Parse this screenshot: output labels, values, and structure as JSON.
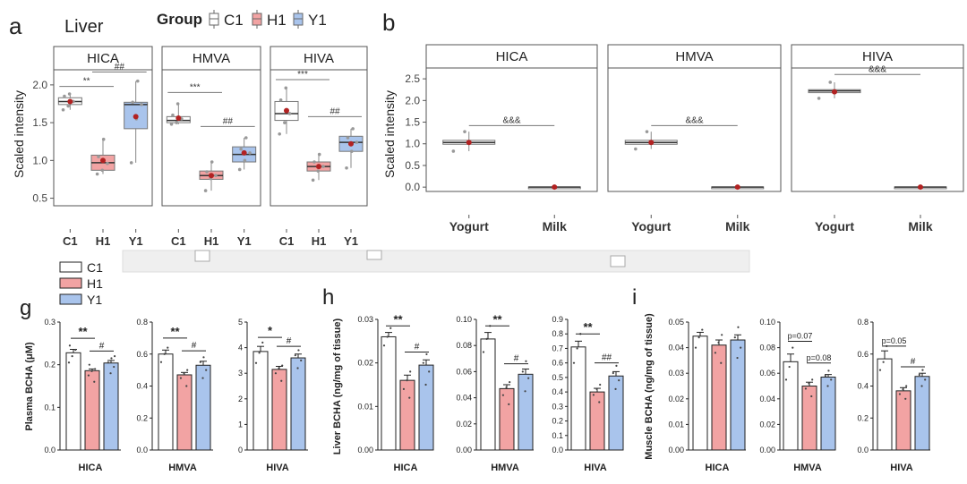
{
  "panel_labels": {
    "a": "a",
    "b": "b",
    "g": "g",
    "h": "h",
    "i": "i"
  },
  "colors": {
    "C1": "#ffffff",
    "H1": "#f2a3a3",
    "Y1": "#a9c4ec",
    "mean": "#b22222",
    "dots": "#999999"
  },
  "legend_top": {
    "title": "Liver",
    "group_label": "Group",
    "items": [
      "C1",
      "H1",
      "Y1"
    ]
  },
  "legend_bottom": {
    "items": [
      "C1",
      "H1",
      "Y1"
    ]
  },
  "chart_data": [
    {
      "id": "a",
      "type": "box",
      "tissue": "Liver",
      "ylabel": "Scaled intensity",
      "ylim": [
        0.4,
        2.2
      ],
      "yticks": [
        "0.5",
        "1.0",
        "1.5",
        "2.0"
      ],
      "ytick_values": [
        0.5,
        1.0,
        1.5,
        2.0
      ],
      "categories": [
        "C1",
        "H1",
        "Y1"
      ],
      "facets": [
        {
          "title": "HICA",
          "boxes": [
            {
              "q1": 1.74,
              "median": 1.78,
              "q3": 1.83,
              "low": 1.67,
              "high": 1.88,
              "mean": 1.78,
              "pts": [
                1.67,
                1.72,
                1.78,
                1.85,
                1.88
              ]
            },
            {
              "q1": 0.87,
              "median": 0.97,
              "q3": 1.07,
              "low": 0.82,
              "high": 1.28,
              "mean": 1.0,
              "pts": [
                0.82,
                0.87,
                0.96,
                1.05,
                1.28
              ]
            },
            {
              "q1": 1.42,
              "median": 1.74,
              "q3": 1.77,
              "low": 0.97,
              "high": 2.05,
              "mean": 1.58,
              "pts": [
                0.97,
                1.55,
                1.74,
                1.77,
                2.05
              ]
            }
          ],
          "annotations": [
            {
              "from": 0,
              "to": 1,
              "y": 1.98,
              "text": "**"
            },
            {
              "from": 1,
              "to": 2,
              "y": 2.17,
              "text": "##"
            }
          ]
        },
        {
          "title": "HMVA",
          "boxes": [
            {
              "q1": 1.5,
              "median": 1.53,
              "q3": 1.58,
              "low": 1.48,
              "high": 1.75,
              "mean": 1.56,
              "pts": [
                1.48,
                1.5,
                1.55,
                1.6,
                1.75
              ]
            },
            {
              "q1": 0.75,
              "median": 0.8,
              "q3": 0.86,
              "low": 0.6,
              "high": 0.98,
              "mean": 0.8,
              "pts": [
                0.6,
                0.76,
                0.8,
                0.85,
                0.98
              ]
            },
            {
              "q1": 0.98,
              "median": 1.08,
              "q3": 1.18,
              "low": 0.88,
              "high": 1.3,
              "mean": 1.1,
              "pts": [
                0.88,
                1.0,
                1.1,
                1.15,
                1.3
              ]
            }
          ],
          "annotations": [
            {
              "from": 0,
              "to": 1,
              "y": 1.9,
              "text": "***"
            },
            {
              "from": 1,
              "to": 2,
              "y": 1.45,
              "text": "##"
            }
          ]
        },
        {
          "title": "HIVA",
          "boxes": [
            {
              "q1": 1.53,
              "median": 1.62,
              "q3": 1.78,
              "low": 1.35,
              "high": 1.96,
              "mean": 1.66,
              "pts": [
                1.35,
                1.5,
                1.62,
                1.8,
                1.96
              ]
            },
            {
              "q1": 0.86,
              "median": 0.92,
              "q3": 0.98,
              "low": 0.74,
              "high": 1.08,
              "mean": 0.92,
              "pts": [
                0.74,
                0.86,
                0.92,
                0.98,
                1.08
              ]
            },
            {
              "q1": 1.12,
              "median": 1.24,
              "q3": 1.32,
              "low": 0.9,
              "high": 1.42,
              "mean": 1.22,
              "pts": [
                0.9,
                1.12,
                1.24,
                1.3,
                1.42
              ]
            }
          ],
          "annotations": [
            {
              "from": 0,
              "to": 1,
              "y": 2.07,
              "text": "***"
            },
            {
              "from": 1,
              "to": 2,
              "y": 1.58,
              "text": "##"
            }
          ]
        }
      ]
    },
    {
      "id": "b",
      "type": "box",
      "ylabel": "Scaled intensity",
      "ylim": [
        -0.1,
        2.75
      ],
      "yticks": [
        "0.0",
        "0.5",
        "1.0",
        "1.5",
        "2.0",
        "2.5"
      ],
      "ytick_values": [
        0,
        0.5,
        1.0,
        1.5,
        2.0,
        2.5
      ],
      "categories": [
        "Yogurt",
        "Milk"
      ],
      "facets": [
        {
          "title": "HICA",
          "boxes": [
            {
              "q1": 0.99,
              "median": 1.03,
              "q3": 1.08,
              "low": 0.83,
              "high": 1.28,
              "mean": 1.03,
              "pts": [
                0.83,
                1.28
              ],
              "color": "#ffffff"
            },
            {
              "q1": 0,
              "median": 0,
              "q3": 0.005,
              "low": 0,
              "high": 0.005,
              "mean": 0,
              "pts": [],
              "color": "#ffffff"
            }
          ],
          "annotations": [
            {
              "from": 0,
              "to": 1,
              "y": 1.42,
              "text": "&&&"
            }
          ]
        },
        {
          "title": "HMVA",
          "boxes": [
            {
              "q1": 0.99,
              "median": 1.03,
              "q3": 1.08,
              "low": 0.88,
              "high": 1.28,
              "mean": 1.03,
              "pts": [
                0.88,
                1.28
              ],
              "color": "#ffffff"
            },
            {
              "q1": 0,
              "median": 0,
              "q3": 0.005,
              "low": 0,
              "high": 0.005,
              "mean": 0,
              "pts": [],
              "color": "#ffffff"
            }
          ],
          "annotations": [
            {
              "from": 0,
              "to": 1,
              "y": 1.42,
              "text": "&&&"
            }
          ]
        },
        {
          "title": "HIVA",
          "boxes": [
            {
              "q1": 2.18,
              "median": 2.22,
              "q3": 2.25,
              "low": 2.05,
              "high": 2.42,
              "mean": 2.2,
              "pts": [
                2.05,
                2.42
              ],
              "color": "#ffffff"
            },
            {
              "q1": 0,
              "median": 0,
              "q3": 0.005,
              "low": 0,
              "high": 0.005,
              "mean": 0,
              "pts": [],
              "color": "#ffffff"
            }
          ],
          "annotations": [
            {
              "from": 0,
              "to": 1,
              "y": 2.6,
              "text": "&&&"
            }
          ]
        }
      ]
    },
    {
      "id": "g",
      "type": "bar",
      "ylabel": "Plasma BCHA (μM)",
      "categories": [
        "C1",
        "H1",
        "Y1"
      ],
      "facets": [
        {
          "title": "HICA",
          "ylim": [
            0,
            0.3
          ],
          "yticks": [
            "0.0",
            "0.1",
            "0.2",
            "0.3"
          ],
          "ytick_values": [
            0,
            0.1,
            0.2,
            0.3
          ],
          "values": [
            0.228,
            0.186,
            0.204
          ],
          "errors": [
            0.008,
            0.004,
            0.006
          ],
          "pts": [
            [
              0.205,
              0.22,
              0.235,
              0.245
            ],
            [
              0.16,
              0.175,
              0.185,
              0.19,
              0.2
            ],
            [
              0.18,
              0.195,
              0.205,
              0.215,
              0.22
            ]
          ],
          "annotations": [
            {
              "from": 0,
              "to": 1,
              "y": 0.262,
              "text": "**"
            },
            {
              "from": 1,
              "to": 2,
              "y": 0.232,
              "text": "#"
            }
          ]
        },
        {
          "title": "HMVA",
          "ylim": [
            0,
            0.8
          ],
          "yticks": [
            "0.0",
            "0.2",
            "0.4",
            "0.6",
            "0.8"
          ],
          "ytick_values": [
            0,
            0.2,
            0.4,
            0.6,
            0.8
          ],
          "values": [
            0.6,
            0.47,
            0.53
          ],
          "errors": [
            0.025,
            0.015,
            0.025
          ],
          "pts": [
            [
              0.55,
              0.6,
              0.64
            ],
            [
              0.4,
              0.45,
              0.48,
              0.5
            ],
            [
              0.45,
              0.5,
              0.55,
              0.58
            ]
          ],
          "annotations": [
            {
              "from": 0,
              "to": 1,
              "y": 0.7,
              "text": "**"
            },
            {
              "from": 1,
              "to": 2,
              "y": 0.62,
              "text": "#"
            }
          ]
        },
        {
          "title": "HIVA",
          "ylim": [
            0,
            5
          ],
          "yticks": [
            "0",
            "1",
            "2",
            "3",
            "4",
            "5"
          ],
          "ytick_values": [
            0,
            1,
            2,
            3,
            4,
            5
          ],
          "values": [
            3.85,
            3.15,
            3.6
          ],
          "errors": [
            0.2,
            0.12,
            0.15
          ],
          "pts": [
            [
              3.4,
              3.8,
              4.2
            ],
            [
              2.7,
              3.0,
              3.2,
              3.3
            ],
            [
              3.2,
              3.5,
              3.7,
              3.9
            ]
          ],
          "annotations": [
            {
              "from": 0,
              "to": 1,
              "y": 4.4,
              "text": "*"
            },
            {
              "from": 1,
              "to": 2,
              "y": 4.05,
              "text": "#"
            }
          ]
        }
      ]
    },
    {
      "id": "h",
      "type": "bar",
      "ylabel": "Liver BCHA (ng/mg of tissue)",
      "categories": [
        "C1",
        "H1",
        "Y1"
      ],
      "facets": [
        {
          "title": "HICA",
          "ylim": [
            0,
            0.03
          ],
          "yticks": [
            "0.00",
            "0.01",
            "0.02",
            "0.03"
          ],
          "ytick_values": [
            0,
            0.01,
            0.02,
            0.03
          ],
          "values": [
            0.026,
            0.016,
            0.0195
          ],
          "errors": [
            0.001,
            0.0012,
            0.0012
          ],
          "pts": [
            [
              0.024,
              0.026,
              0.028
            ],
            [
              0.012,
              0.014,
              0.016,
              0.018
            ],
            [
              0.015,
              0.018,
              0.02,
              0.022
            ]
          ],
          "annotations": [
            {
              "from": 0,
              "to": 1,
              "y": 0.0285,
              "text": "**"
            },
            {
              "from": 1,
              "to": 2,
              "y": 0.0225,
              "text": "#"
            }
          ]
        },
        {
          "title": "HMVA",
          "ylim": [
            0,
            0.1
          ],
          "yticks": [
            "0.00",
            "0.02",
            "0.04",
            "0.06",
            "0.08",
            "0.10"
          ],
          "ytick_values": [
            0,
            0.02,
            0.04,
            0.06,
            0.08,
            0.1
          ],
          "values": [
            0.085,
            0.047,
            0.058
          ],
          "errors": [
            0.005,
            0.003,
            0.004
          ],
          "pts": [
            [
              0.075,
              0.085,
              0.095
            ],
            [
              0.035,
              0.042,
              0.048,
              0.052
            ],
            [
              0.045,
              0.055,
              0.06,
              0.068
            ]
          ],
          "annotations": [
            {
              "from": 0,
              "to": 1,
              "y": 0.095,
              "text": "**"
            },
            {
              "from": 1,
              "to": 2,
              "y": 0.066,
              "text": "#"
            }
          ]
        },
        {
          "title": "HIVA",
          "ylim": [
            0,
            0.9
          ],
          "yticks": [
            "0.0",
            "0.1",
            "0.2",
            "0.3",
            "0.4",
            "0.5",
            "0.6",
            "0.7",
            "0.8",
            "0.9"
          ],
          "ytick_values": [
            0,
            0.1,
            0.2,
            0.3,
            0.4,
            0.5,
            0.6,
            0.7,
            0.8,
            0.9
          ],
          "values": [
            0.71,
            0.4,
            0.51
          ],
          "errors": [
            0.04,
            0.025,
            0.03
          ],
          "pts": [
            [
              0.6,
              0.7,
              0.8
            ],
            [
              0.33,
              0.38,
              0.42,
              0.45
            ],
            [
              0.42,
              0.48,
              0.53,
              0.58
            ]
          ],
          "annotations": [
            {
              "from": 0,
              "to": 1,
              "y": 0.8,
              "text": "**"
            },
            {
              "from": 1,
              "to": 2,
              "y": 0.6,
              "text": "##"
            }
          ]
        }
      ]
    },
    {
      "id": "i",
      "type": "bar",
      "ylabel": "Muscle BCHA (ng/mg of tissue)",
      "categories": [
        "C1",
        "H1",
        "Y1"
      ],
      "facets": [
        {
          "title": "HICA",
          "ylim": [
            0,
            0.05
          ],
          "yticks": [
            "0.00",
            "0.01",
            "0.02",
            "0.03",
            "0.04",
            "0.05"
          ],
          "ytick_values": [
            0,
            0.01,
            0.02,
            0.03,
            0.04,
            0.05
          ],
          "values": [
            0.0445,
            0.041,
            0.043
          ],
          "errors": [
            0.0015,
            0.002,
            0.002
          ],
          "pts": [
            [
              0.04,
              0.044,
              0.047
            ],
            [
              0.034,
              0.038,
              0.042,
              0.045
            ],
            [
              0.036,
              0.04,
              0.044,
              0.048
            ]
          ],
          "annotations": []
        },
        {
          "title": "HMVA",
          "ylim": [
            0,
            0.1
          ],
          "yticks": [
            "0.00",
            "0.02",
            "0.04",
            "0.06",
            "0.08",
            "0.10"
          ],
          "ytick_values": [
            0,
            0.02,
            0.04,
            0.06,
            0.08,
            0.1
          ],
          "values": [
            0.069,
            0.05,
            0.057
          ],
          "errors": [
            0.006,
            0.003,
            0.002
          ],
          "pts": [
            [
              0.055,
              0.065,
              0.08
            ],
            [
              0.042,
              0.048,
              0.052,
              0.055
            ],
            [
              0.05,
              0.055,
              0.058,
              0.062
            ]
          ],
          "annotations": [
            {
              "from": 0,
              "to": 1,
              "y": 0.085,
              "text": "p=0.07"
            },
            {
              "from": 1,
              "to": 2,
              "y": 0.068,
              "text": "p=0.08"
            }
          ]
        },
        {
          "title": "HIVA",
          "ylim": [
            0,
            0.8
          ],
          "yticks": [
            "0.0",
            "0.2",
            "0.4",
            "0.6",
            "0.8"
          ],
          "ytick_values": [
            0,
            0.2,
            0.4,
            0.6,
            0.8
          ],
          "values": [
            0.57,
            0.37,
            0.46
          ],
          "errors": [
            0.05,
            0.02,
            0.02
          ],
          "pts": [
            [
              0.5,
              0.55,
              0.65
            ],
            [
              0.32,
              0.35,
              0.38,
              0.4
            ],
            [
              0.4,
              0.44,
              0.47,
              0.5
            ]
          ],
          "annotations": [
            {
              "from": 0,
              "to": 1,
              "y": 0.65,
              "text": "p=0.05"
            },
            {
              "from": 1,
              "to": 2,
              "y": 0.52,
              "text": "#"
            }
          ]
        }
      ]
    }
  ]
}
